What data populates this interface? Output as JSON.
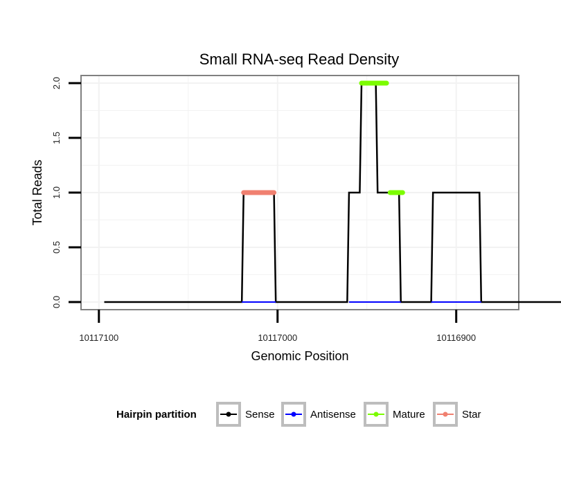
{
  "chart_data": {
    "type": "line",
    "title": "Small RNA-seq Read Density",
    "xlabel": "Genomic Position",
    "ylabel": "Total Reads",
    "x_reversed": true,
    "xlim": [
      10117110,
      10116865
    ],
    "ylim": [
      -0.07,
      2.07
    ],
    "x_ticks": [
      10117100,
      10117000,
      10116900
    ],
    "x_tick_labels": [
      "10117100",
      "10117000",
      "10116900"
    ],
    "y_ticks": [
      0.0,
      0.5,
      1.0,
      1.5,
      2.0
    ],
    "y_tick_labels": [
      "0.0",
      "0.5",
      "1.0",
      "1.5",
      "2.0"
    ],
    "grid": true,
    "legend": {
      "title": "Hairpin partition",
      "placement": "bottom",
      "entries": [
        {
          "name": "Sense",
          "color": "#000000"
        },
        {
          "name": "Antisense",
          "color": "#0000ff"
        },
        {
          "name": "Mature",
          "color": "#7cfc00"
        },
        {
          "name": "Star",
          "color": "#f08070"
        }
      ]
    },
    "series": [
      {
        "name": "Sense",
        "color": "#000000",
        "x": [
          10117097,
          10117020,
          10117019,
          10117002,
          10117001,
          10116961,
          10116960,
          10116954,
          10116953,
          10116945,
          10116944,
          10116932,
          10116931,
          10116914,
          10116913,
          10116887,
          10116886,
          10116839
        ],
        "y": [
          0,
          0,
          1,
          1,
          0,
          0,
          1,
          1,
          2,
          2,
          1,
          1,
          0,
          0,
          1,
          1,
          0,
          0
        ]
      },
      {
        "name": "Antisense",
        "color": "#0000ff",
        "x": [
          10117020,
          10117001,
          10116960,
          10116931,
          10116914,
          10116886
        ],
        "y": [
          0,
          0,
          0,
          0,
          0,
          0
        ],
        "segments": [
          [
            0,
            1
          ],
          [
            2,
            3
          ],
          [
            4,
            5
          ]
        ]
      },
      {
        "name": "Mature",
        "color": "#7cfc00",
        "x": [
          10116953,
          10116939,
          10116937,
          10116930
        ],
        "y": [
          2,
          2,
          1,
          1
        ],
        "segments": [
          [
            0,
            1
          ],
          [
            2,
            3
          ]
        ]
      },
      {
        "name": "Star",
        "color": "#f08070",
        "x": [
          10117019,
          10117002
        ],
        "y": [
          1,
          1
        ],
        "segments": [
          [
            0,
            1
          ]
        ]
      }
    ]
  }
}
